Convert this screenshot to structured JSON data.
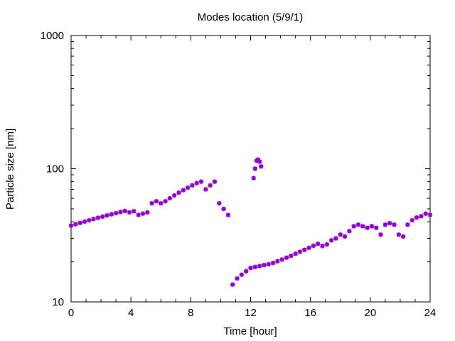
{
  "chart_data": {
    "type": "scatter",
    "title": "Modes location (5/9/1)",
    "xlabel": "Time [hour]",
    "ylabel": "Particle size [nm]",
    "xlim": [
      0,
      24
    ],
    "ylim": [
      10,
      1000
    ],
    "yscale": "log",
    "grid": false,
    "legend": "none",
    "marker_color": "#9400d3",
    "x_ticks": [
      {
        "value": 0,
        "label": "0"
      },
      {
        "value": 4,
        "label": "4"
      },
      {
        "value": 8,
        "label": "8"
      },
      {
        "value": 12,
        "label": "12"
      },
      {
        "value": 16,
        "label": "16"
      },
      {
        "value": 20,
        "label": "20"
      },
      {
        "value": 24,
        "label": "24"
      }
    ],
    "y_ticks": [
      {
        "value": 10,
        "label": "10"
      },
      {
        "value": 100,
        "label": "100"
      },
      {
        "value": 1000,
        "label": "1000"
      }
    ],
    "series": [
      {
        "x": [
          0.0,
          0.3,
          0.6,
          0.9,
          1.2,
          1.5,
          1.8,
          2.1,
          2.4,
          2.7,
          3.0,
          3.3,
          3.6,
          3.9,
          4.2,
          4.5,
          4.8,
          5.1,
          5.4,
          5.7,
          6.0,
          6.3,
          6.6,
          6.9,
          7.2,
          7.5,
          7.8,
          8.1,
          8.4,
          8.7,
          9.0,
          9.3,
          9.6,
          9.9,
          10.2,
          10.5,
          10.8,
          11.1,
          11.4,
          11.7,
          12.0,
          12.3,
          12.6,
          12.9,
          13.2,
          13.5,
          13.8,
          14.1,
          14.4,
          14.7,
          15.0,
          15.3,
          15.6,
          15.9,
          16.2,
          16.5,
          16.8,
          17.1,
          17.4,
          17.7,
          18.0,
          18.3,
          18.6,
          18.9,
          19.2,
          19.5,
          19.8,
          20.1,
          20.4,
          20.7,
          21.0,
          21.3,
          21.6,
          21.9,
          22.2,
          22.5,
          22.8,
          23.1,
          23.4,
          23.7,
          24.0
        ],
        "y": [
          37.4,
          38.3,
          39.2,
          40.1,
          41.0,
          41.9,
          42.8,
          43.7,
          44.6,
          45.5,
          46.4,
          47.3,
          48.2,
          47.0,
          48.0,
          45.0,
          46.0,
          47.0,
          55.0,
          57.0,
          55.0,
          57.0,
          60.0,
          63.0,
          66.0,
          69.0,
          72.0,
          75.0,
          78.0,
          80.0,
          70.0,
          75.0,
          80.0,
          55.0,
          50.0,
          45.0,
          13.5,
          15.0,
          16.0,
          17.0,
          18.0,
          18.3,
          18.6,
          18.9,
          19.2,
          19.6,
          20.2,
          20.8,
          21.5,
          22.2,
          23.0,
          23.8,
          24.6,
          25.5,
          26.4,
          27.3,
          26.3,
          27.0,
          29.0,
          30.0,
          32.0,
          31.0,
          34.0,
          37.0,
          38.0,
          37.0,
          36.0,
          37.0,
          36.0,
          32.0,
          38.0,
          39.0,
          38.0,
          32.0,
          31.0,
          38.0,
          41.0,
          43.0,
          44.0,
          46.0,
          45.0
        ]
      },
      {
        "x": [
          12.2,
          12.3,
          12.4,
          12.5,
          12.6,
          12.7
        ],
        "y": [
          85.0,
          100.0,
          115.0,
          117.0,
          113.0,
          104.0
        ]
      }
    ]
  }
}
